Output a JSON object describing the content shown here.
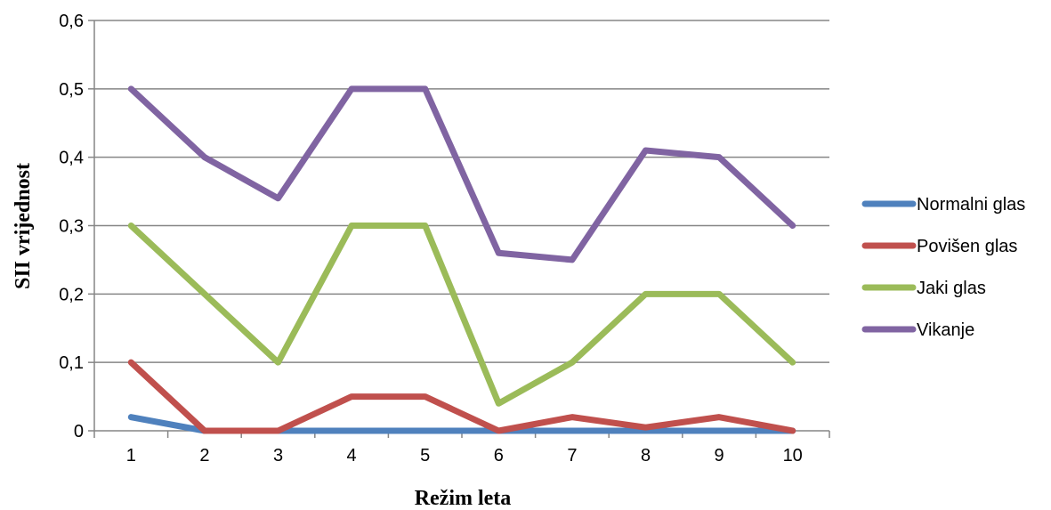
{
  "chart_data": {
    "type": "line",
    "xlabel": "Režim leta",
    "ylabel": "SII vrijednost",
    "x": [
      1,
      2,
      3,
      4,
      5,
      6,
      7,
      8,
      9,
      10
    ],
    "x_tick_labels": [
      "1",
      "2",
      "3",
      "4",
      "5",
      "6",
      "7",
      "8",
      "9",
      "10"
    ],
    "ylim": [
      0,
      0.6
    ],
    "y_ticks": [
      0,
      0.1,
      0.2,
      0.3,
      0.4,
      0.5,
      0.6
    ],
    "y_tick_labels": [
      "0",
      "0,1",
      "0,2",
      "0,3",
      "0,4",
      "0,5",
      "0,6"
    ],
    "grid": true,
    "legend_position": "right",
    "series": [
      {
        "name": "Normalni glas",
        "color": "#4f81bd",
        "values": [
          0.02,
          0,
          0,
          0,
          0,
          0,
          0,
          0,
          0,
          0
        ]
      },
      {
        "name": "Povišen glas",
        "color": "#c0504d",
        "values": [
          0.1,
          0,
          0,
          0.05,
          0.05,
          0,
          0.02,
          0.005,
          0.02,
          0
        ]
      },
      {
        "name": "Jaki glas",
        "color": "#9bbb59",
        "values": [
          0.3,
          0.2,
          0.1,
          0.3,
          0.3,
          0.04,
          0.1,
          0.2,
          0.2,
          0.1
        ]
      },
      {
        "name": "Vikanje",
        "color": "#8064a2",
        "values": [
          0.5,
          0.4,
          0.34,
          0.5,
          0.5,
          0.26,
          0.25,
          0.41,
          0.4,
          0.3
        ]
      }
    ]
  }
}
